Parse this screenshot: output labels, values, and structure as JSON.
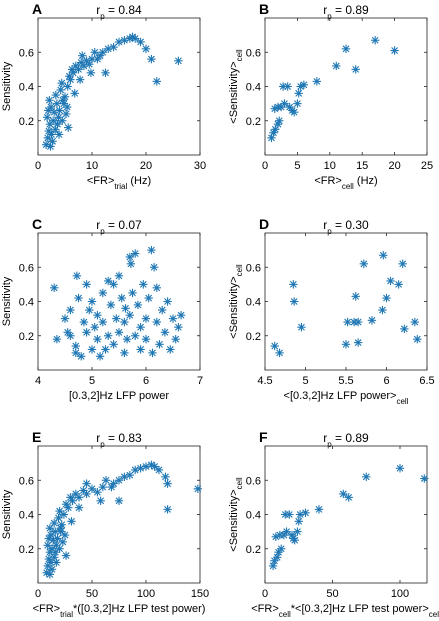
{
  "chart_data": [
    {
      "id": "A",
      "type": "scatter",
      "letter": "A",
      "title_main": "r",
      "title_sub": "p",
      "title_value": " = 0.84",
      "xlabel_main": "<FR>",
      "xlabel_sub": "trial",
      "xlabel_tail": " (Hz)",
      "ylabel_main": "Sensitivity",
      "ylabel_sub": "",
      "xlim": [
        0,
        30
      ],
      "ylim": [
        0,
        0.8
      ],
      "xticks": [
        0,
        10,
        20,
        30
      ],
      "yticks": [
        0.2,
        0.4,
        0.6
      ],
      "xtick_labels": [
        "0",
        "10",
        "20",
        "30"
      ],
      "ytick_labels": [
        "0.2",
        "0.4",
        "0.6"
      ],
      "points": [
        [
          1.5,
          0.06
        ],
        [
          1.8,
          0.1
        ],
        [
          2.0,
          0.14
        ],
        [
          2.2,
          0.18
        ],
        [
          1.7,
          0.22
        ],
        [
          2.5,
          0.12
        ],
        [
          2.8,
          0.2
        ],
        [
          3.0,
          0.25
        ],
        [
          2.4,
          0.28
        ],
        [
          3.2,
          0.15
        ],
        [
          3.5,
          0.3
        ],
        [
          3.8,
          0.22
        ],
        [
          4.0,
          0.26
        ],
        [
          2.1,
          0.32
        ],
        [
          3.3,
          0.35
        ],
        [
          4.2,
          0.38
        ],
        [
          4.5,
          0.2
        ],
        [
          4.8,
          0.3
        ],
        [
          5.0,
          0.34
        ],
        [
          5.2,
          0.24
        ],
        [
          3.6,
          0.18
        ],
        [
          2.7,
          0.08
        ],
        [
          1.9,
          0.26
        ],
        [
          4.4,
          0.42
        ],
        [
          5.5,
          0.4
        ],
        [
          5.8,
          0.46
        ],
        [
          6.0,
          0.44
        ],
        [
          6.3,
          0.5
        ],
        [
          6.5,
          0.48
        ],
        [
          7.0,
          0.52
        ],
        [
          7.5,
          0.5
        ],
        [
          8.0,
          0.54
        ],
        [
          8.5,
          0.52
        ],
        [
          9.0,
          0.55
        ],
        [
          9.5,
          0.53
        ],
        [
          10.0,
          0.56
        ],
        [
          10.5,
          0.6
        ],
        [
          11.0,
          0.56
        ],
        [
          12.0,
          0.6
        ],
        [
          13.0,
          0.62
        ],
        [
          14.0,
          0.63
        ],
        [
          15.0,
          0.66
        ],
        [
          16.0,
          0.67
        ],
        [
          17.0,
          0.68
        ],
        [
          17.5,
          0.69
        ],
        [
          18.0,
          0.68
        ],
        [
          19.0,
          0.66
        ],
        [
          20.0,
          0.62
        ],
        [
          21.0,
          0.56
        ],
        [
          22.0,
          0.43
        ],
        [
          26.0,
          0.55
        ],
        [
          7.8,
          0.44
        ],
        [
          6.8,
          0.36
        ],
        [
          5.4,
          0.28
        ],
        [
          4.6,
          0.32
        ],
        [
          3.9,
          0.12
        ],
        [
          2.3,
          0.05
        ],
        [
          8.2,
          0.58
        ],
        [
          9.8,
          0.48
        ],
        [
          11.5,
          0.58
        ],
        [
          12.5,
          0.48
        ],
        [
          5.6,
          0.16
        ]
      ]
    },
    {
      "id": "B",
      "type": "scatter",
      "letter": "B",
      "title_main": "r",
      "title_sub": "p",
      "title_value": " = 0.89",
      "xlabel_main": "<FR>",
      "xlabel_sub": "cell",
      "xlabel_tail": " (Hz)",
      "ylabel_main": "<Sensitivity>",
      "ylabel_sub": "cell",
      "xlim": [
        0,
        25
      ],
      "ylim": [
        0,
        0.8
      ],
      "xticks": [
        0,
        5,
        10,
        15,
        20,
        25
      ],
      "yticks": [
        0.2,
        0.4,
        0.6
      ],
      "xtick_labels": [
        "0",
        "5",
        "10",
        "15",
        "20",
        "25"
      ],
      "ytick_labels": [
        "0.2",
        "0.4",
        "0.6"
      ],
      "points": [
        [
          1.0,
          0.1
        ],
        [
          1.3,
          0.13
        ],
        [
          1.6,
          0.15
        ],
        [
          2.0,
          0.18
        ],
        [
          2.2,
          0.2
        ],
        [
          1.5,
          0.27
        ],
        [
          2.0,
          0.28
        ],
        [
          2.5,
          0.28
        ],
        [
          3.0,
          0.3
        ],
        [
          2.8,
          0.4
        ],
        [
          3.5,
          0.4
        ],
        [
          3.8,
          0.28
        ],
        [
          4.5,
          0.25
        ],
        [
          5.0,
          0.3
        ],
        [
          5.5,
          0.4
        ],
        [
          6.0,
          0.41
        ],
        [
          5.2,
          0.36
        ],
        [
          8.0,
          0.43
        ],
        [
          11.0,
          0.52
        ],
        [
          12.5,
          0.62
        ],
        [
          14.0,
          0.5
        ],
        [
          17.0,
          0.67
        ],
        [
          20.0,
          0.61
        ],
        [
          4.2,
          0.26
        ]
      ]
    },
    {
      "id": "C",
      "type": "scatter",
      "letter": "C",
      "title_main": "r",
      "title_sub": "p",
      "title_value": " = 0.07",
      "xlabel_main": "[0.3,2]Hz LFP power",
      "xlabel_sub": "",
      "xlabel_tail": "",
      "ylabel_main": "Sensitivity",
      "ylabel_sub": "",
      "xlim": [
        4,
        7
      ],
      "ylim": [
        0,
        0.8
      ],
      "xticks": [
        4,
        5,
        6,
        7
      ],
      "yticks": [
        0.2,
        0.4,
        0.6
      ],
      "xtick_labels": [
        "4",
        "5",
        "6",
        "7"
      ],
      "ytick_labels": [
        "0.2",
        "0.4",
        "0.6"
      ],
      "points": [
        [
          4.3,
          0.48
        ],
        [
          4.35,
          0.18
        ],
        [
          4.5,
          0.3
        ],
        [
          4.6,
          0.2
        ],
        [
          4.6,
          0.35
        ],
        [
          4.7,
          0.14
        ],
        [
          4.7,
          0.1
        ],
        [
          4.72,
          0.55
        ],
        [
          4.75,
          0.42
        ],
        [
          4.8,
          0.08
        ],
        [
          4.85,
          0.28
        ],
        [
          4.9,
          0.22
        ],
        [
          4.9,
          0.5
        ],
        [
          4.95,
          0.35
        ],
        [
          5.0,
          0.12
        ],
        [
          5.0,
          0.4
        ],
        [
          5.05,
          0.25
        ],
        [
          5.1,
          0.32
        ],
        [
          5.1,
          0.18
        ],
        [
          5.2,
          0.45
        ],
        [
          5.2,
          0.28
        ],
        [
          5.25,
          0.12
        ],
        [
          5.3,
          0.52
        ],
        [
          5.3,
          0.2
        ],
        [
          5.35,
          0.38
        ],
        [
          5.4,
          0.15
        ],
        [
          5.45,
          0.3
        ],
        [
          5.5,
          0.22
        ],
        [
          5.5,
          0.55
        ],
        [
          5.55,
          0.42
        ],
        [
          5.6,
          0.1
        ],
        [
          5.6,
          0.28
        ],
        [
          5.65,
          0.18
        ],
        [
          5.7,
          0.32
        ],
        [
          5.7,
          0.66
        ],
        [
          5.72,
          0.62
        ],
        [
          5.75,
          0.45
        ],
        [
          5.8,
          0.68
        ],
        [
          5.8,
          0.2
        ],
        [
          5.85,
          0.38
        ],
        [
          5.9,
          0.25
        ],
        [
          5.9,
          0.12
        ],
        [
          5.95,
          0.5
        ],
        [
          6.0,
          0.3
        ],
        [
          6.0,
          0.18
        ],
        [
          6.05,
          0.42
        ],
        [
          6.1,
          0.7
        ],
        [
          6.15,
          0.6
        ],
        [
          6.2,
          0.48
        ],
        [
          6.2,
          0.28
        ],
        [
          6.25,
          0.15
        ],
        [
          6.3,
          0.35
        ],
        [
          6.35,
          0.22
        ],
        [
          6.4,
          0.4
        ],
        [
          6.45,
          0.12
        ],
        [
          6.5,
          0.3
        ],
        [
          6.55,
          0.18
        ],
        [
          6.6,
          0.25
        ],
        [
          6.65,
          0.32
        ],
        [
          5.4,
          0.5
        ],
        [
          5.15,
          0.08
        ],
        [
          4.55,
          0.22
        ],
        [
          6.12,
          0.1
        ],
        [
          5.62,
          0.36
        ]
      ]
    },
    {
      "id": "D",
      "type": "scatter",
      "letter": "D",
      "title_main": "r",
      "title_sub": "p",
      "title_value": " = 0.30",
      "xlabel_main": "<[0.3,2]Hz LFP power>",
      "xlabel_sub": "cell",
      "xlabel_tail": "",
      "ylabel_main": "<Sensitivity>",
      "ylabel_sub": "cell",
      "xlim": [
        4.5,
        6.5
      ],
      "ylim": [
        0,
        0.8
      ],
      "xticks": [
        4.5,
        5,
        5.5,
        6,
        6.5
      ],
      "yticks": [
        0.2,
        0.4,
        0.6
      ],
      "xtick_labels": [
        "4.5",
        "5",
        "5.5",
        "6",
        "6.5"
      ],
      "ytick_labels": [
        "0.2",
        "0.4",
        "0.6"
      ],
      "points": [
        [
          4.62,
          0.14
        ],
        [
          4.68,
          0.1
        ],
        [
          4.85,
          0.5
        ],
        [
          4.86,
          0.4
        ],
        [
          4.95,
          0.25
        ],
        [
          5.5,
          0.15
        ],
        [
          5.52,
          0.28
        ],
        [
          5.6,
          0.28
        ],
        [
          5.62,
          0.43
        ],
        [
          5.65,
          0.16
        ],
        [
          5.65,
          0.28
        ],
        [
          5.72,
          0.62
        ],
        [
          5.82,
          0.29
        ],
        [
          5.95,
          0.35
        ],
        [
          5.96,
          0.67
        ],
        [
          6.0,
          0.42
        ],
        [
          6.05,
          0.52
        ],
        [
          6.15,
          0.5
        ],
        [
          6.2,
          0.62
        ],
        [
          6.22,
          0.24
        ],
        [
          6.35,
          0.28
        ],
        [
          6.38,
          0.18
        ]
      ]
    },
    {
      "id": "E",
      "type": "scatter",
      "letter": "E",
      "title_main": "r",
      "title_sub": "p",
      "title_value": " = 0.83",
      "xlabel_main": "<FR>",
      "xlabel_sub": "trial",
      "xlabel_tail": "*([0.3,2]Hz LFP test power)",
      "ylabel_main": "Sensitivity",
      "ylabel_sub": "",
      "xlim": [
        0,
        150
      ],
      "ylim": [
        0,
        0.8
      ],
      "xticks": [
        0,
        50,
        100,
        150
      ],
      "yticks": [
        0.2,
        0.4,
        0.6
      ],
      "xtick_labels": [
        "0",
        "50",
        "100",
        "150"
      ],
      "ytick_labels": [
        "0.2",
        "0.4",
        "0.6"
      ],
      "points": [
        [
          8,
          0.06
        ],
        [
          9,
          0.1
        ],
        [
          10,
          0.14
        ],
        [
          11,
          0.18
        ],
        [
          9,
          0.22
        ],
        [
          12,
          0.12
        ],
        [
          13,
          0.2
        ],
        [
          14,
          0.25
        ],
        [
          12,
          0.28
        ],
        [
          15,
          0.15
        ],
        [
          16,
          0.3
        ],
        [
          17,
          0.22
        ],
        [
          18,
          0.26
        ],
        [
          11,
          0.32
        ],
        [
          15,
          0.35
        ],
        [
          19,
          0.38
        ],
        [
          20,
          0.2
        ],
        [
          21,
          0.3
        ],
        [
          22,
          0.34
        ],
        [
          23,
          0.24
        ],
        [
          16,
          0.18
        ],
        [
          13,
          0.08
        ],
        [
          10,
          0.26
        ],
        [
          20,
          0.42
        ],
        [
          24,
          0.4
        ],
        [
          26,
          0.46
        ],
        [
          28,
          0.44
        ],
        [
          30,
          0.5
        ],
        [
          32,
          0.48
        ],
        [
          35,
          0.52
        ],
        [
          38,
          0.5
        ],
        [
          42,
          0.54
        ],
        [
          45,
          0.52
        ],
        [
          50,
          0.55
        ],
        [
          55,
          0.53
        ],
        [
          60,
          0.56
        ],
        [
          63,
          0.6
        ],
        [
          68,
          0.56
        ],
        [
          75,
          0.6
        ],
        [
          80,
          0.62
        ],
        [
          85,
          0.63
        ],
        [
          90,
          0.66
        ],
        [
          95,
          0.67
        ],
        [
          100,
          0.68
        ],
        [
          105,
          0.69
        ],
        [
          108,
          0.68
        ],
        [
          112,
          0.66
        ],
        [
          118,
          0.62
        ],
        [
          120,
          0.58
        ],
        [
          120,
          0.43
        ],
        [
          148,
          0.55
        ],
        [
          38,
          0.44
        ],
        [
          31,
          0.36
        ],
        [
          25,
          0.28
        ],
        [
          21,
          0.32
        ],
        [
          17,
          0.12
        ],
        [
          11,
          0.05
        ],
        [
          45,
          0.58
        ],
        [
          58,
          0.48
        ],
        [
          70,
          0.58
        ],
        [
          75,
          0.48
        ],
        [
          26,
          0.16
        ]
      ]
    },
    {
      "id": "F",
      "type": "scatter",
      "letter": "F",
      "title_main": "r",
      "title_sub": "p",
      "title_value": " = 0.89",
      "xlabel_main": "<FR>",
      "xlabel_sub": "cell",
      "xlabel_tail": "*<[0.3,2]Hz LFP test power>",
      "xlabel_tail_sub": "cell",
      "ylabel_main": "<Sensitivity>",
      "ylabel_sub": "cell",
      "xlim": [
        0,
        120
      ],
      "ylim": [
        0,
        0.8
      ],
      "xticks": [
        0,
        50,
        100
      ],
      "yticks": [
        0.2,
        0.4,
        0.6
      ],
      "xtick_labels": [
        "0",
        "50",
        "100"
      ],
      "ytick_labels": [
        "0.2",
        "0.4",
        "0.6"
      ],
      "points": [
        [
          6,
          0.1
        ],
        [
          7,
          0.13
        ],
        [
          9,
          0.15
        ],
        [
          10,
          0.18
        ],
        [
          12,
          0.2
        ],
        [
          8,
          0.27
        ],
        [
          11,
          0.28
        ],
        [
          14,
          0.28
        ],
        [
          16,
          0.3
        ],
        [
          15,
          0.4
        ],
        [
          18,
          0.4
        ],
        [
          20,
          0.28
        ],
        [
          22,
          0.25
        ],
        [
          24,
          0.3
        ],
        [
          26,
          0.4
        ],
        [
          30,
          0.41
        ],
        [
          25,
          0.36
        ],
        [
          40,
          0.43
        ],
        [
          58,
          0.52
        ],
        [
          62,
          0.5
        ],
        [
          75,
          0.62
        ],
        [
          100,
          0.67
        ],
        [
          118,
          0.61
        ],
        [
          21,
          0.26
        ]
      ]
    }
  ],
  "colors": {
    "marker": "#1f77b4",
    "axis": "#222222"
  }
}
